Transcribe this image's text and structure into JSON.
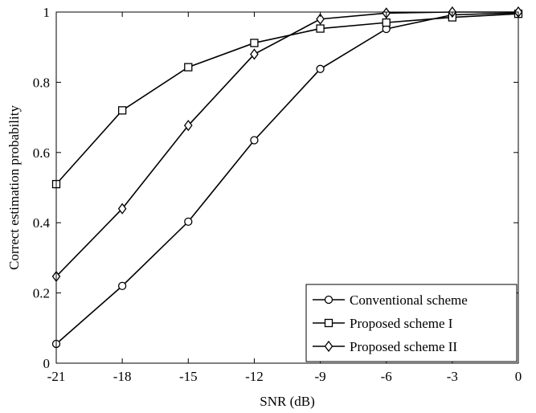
{
  "chart_data": {
    "type": "line",
    "title": "",
    "xlabel": "SNR (dB)",
    "ylabel": "Correct estimation probability",
    "x": [
      -21,
      -18,
      -15,
      -12,
      -9,
      -6,
      -3,
      0
    ],
    "xlim": [
      -21,
      0
    ],
    "ylim": [
      0,
      1
    ],
    "x_tick_labels": [
      "-21",
      "-18",
      "-15",
      "-12",
      "-9",
      "-6",
      "-3",
      "0"
    ],
    "y_tick_labels": [
      "0",
      "0.2",
      "0.4",
      "0.6",
      "0.8",
      "1"
    ],
    "y_tick_values": [
      0,
      0.2,
      0.4,
      0.6,
      0.8,
      1
    ],
    "grid": false,
    "legend_position": "bottom-right",
    "series": [
      {
        "name": "Conventional scheme",
        "marker": "circle",
        "color": "#000000",
        "values": [
          0.055,
          0.22,
          0.403,
          0.635,
          0.838,
          0.952,
          0.992,
          0.998
        ]
      },
      {
        "name": "Proposed scheme I",
        "marker": "square",
        "color": "#000000",
        "values": [
          0.51,
          0.72,
          0.843,
          0.912,
          0.953,
          0.97,
          0.985,
          0.995
        ]
      },
      {
        "name": "Proposed scheme II",
        "marker": "diamond",
        "color": "#000000",
        "values": [
          0.247,
          0.44,
          0.677,
          0.88,
          0.98,
          0.997,
          1.0,
          1.0
        ]
      }
    ]
  }
}
